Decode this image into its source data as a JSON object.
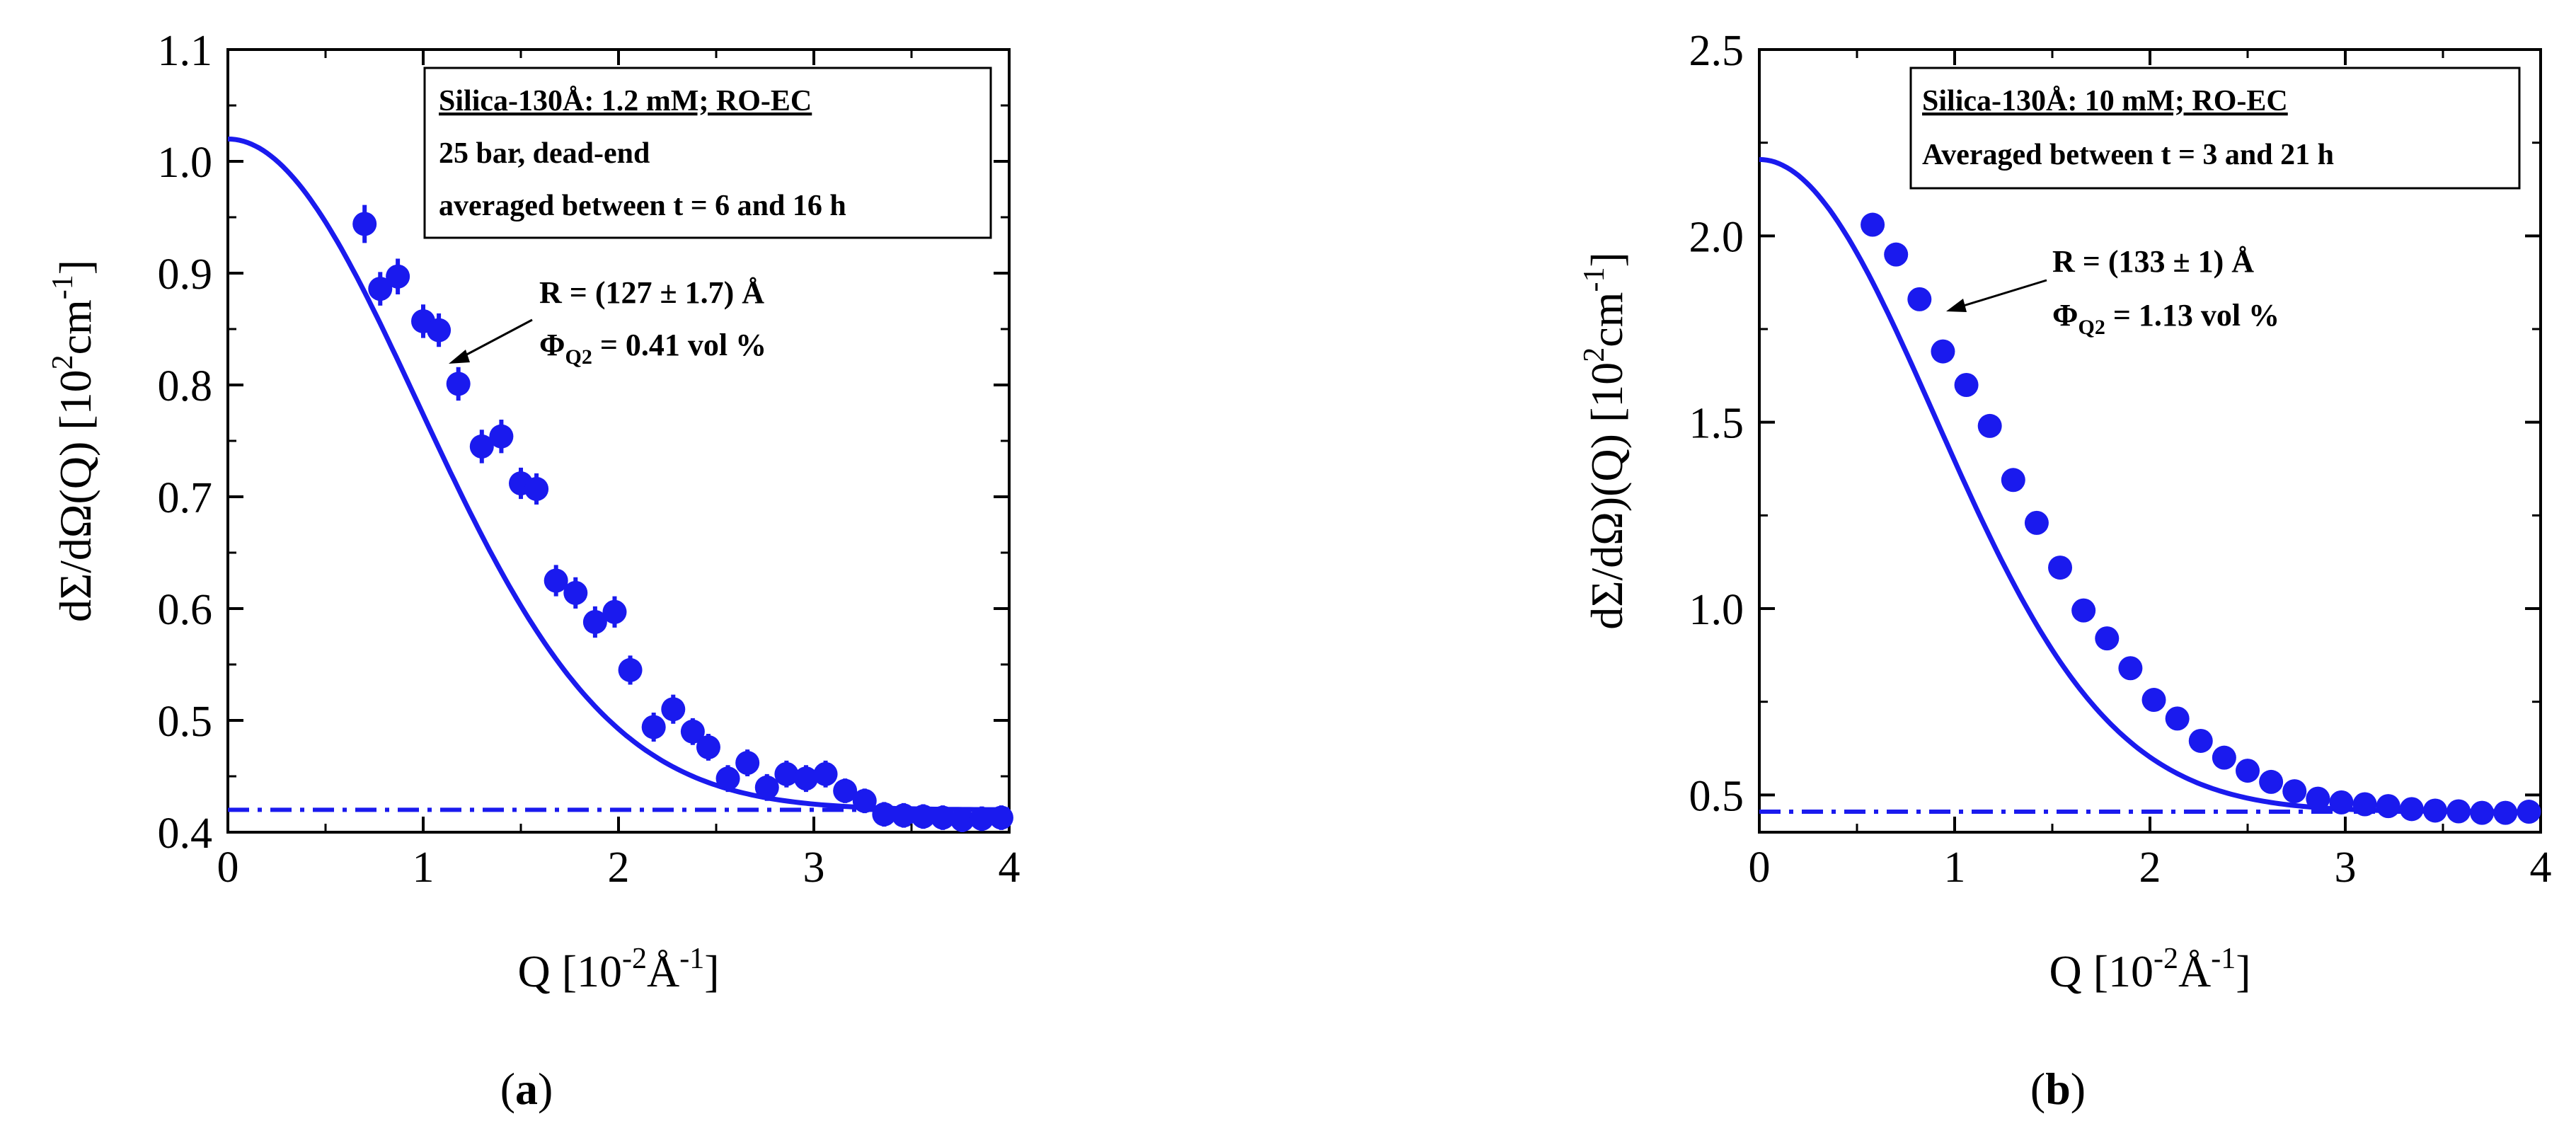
{
  "colors": {
    "series": "#1a1aee",
    "axis": "#000000"
  },
  "chart_data": [
    {
      "type": "scatter",
      "panel_label": "(a)",
      "panel_label_parts": [
        "(",
        "a",
        ")"
      ],
      "xlabel": "Q [10-2Å-1]",
      "xlabel_parts": [
        "Q [10",
        "-2",
        "Å",
        "-1",
        "]"
      ],
      "ylabel": "dΣ/dΩ(Q) [102cm-1]",
      "ylabel_parts": [
        "dΣ/dΩ(Q) [10",
        "2",
        "cm",
        "-1",
        "]"
      ],
      "xlim": [
        0,
        4
      ],
      "ylim": [
        0.4,
        1.1
      ],
      "xticks": [
        "0",
        "1",
        "2",
        "3",
        "4"
      ],
      "yticks": [
        "0.4",
        "0.5",
        "0.6",
        "0.7",
        "0.8",
        "0.9",
        "1.0",
        "1.1"
      ],
      "legend_box": {
        "title": "Silica-130Å: 1.2 mM; RO-EC",
        "lines": [
          "25 bar, dead-end",
          "averaged between t = 6 and 16 h"
        ]
      },
      "annotation": {
        "line1": "R = (127 ± 1.7) Å",
        "phi_symbol": "Φ",
        "phi_sub": "Q2",
        "phi_value": " = 0.41 vol %"
      },
      "background_level": 0.42,
      "fit": {
        "I0": 1.02,
        "Rg_scale": 1.375,
        "background": 0.42
      },
      "points": [
        [
          0.7,
          0.944,
          0.017
        ],
        [
          0.78,
          0.886,
          0.015
        ],
        [
          0.87,
          0.897,
          0.016
        ],
        [
          1.0,
          0.857,
          0.015
        ],
        [
          1.08,
          0.849,
          0.015
        ],
        [
          1.18,
          0.801,
          0.015
        ],
        [
          1.3,
          0.745,
          0.015
        ],
        [
          1.4,
          0.754,
          0.015
        ],
        [
          1.5,
          0.712,
          0.014
        ],
        [
          1.58,
          0.707,
          0.014
        ],
        [
          1.68,
          0.625,
          0.014
        ],
        [
          1.78,
          0.614,
          0.014
        ],
        [
          1.88,
          0.588,
          0.014
        ],
        [
          1.98,
          0.597,
          0.014
        ],
        [
          2.06,
          0.545,
          0.013
        ],
        [
          2.18,
          0.494,
          0.013
        ],
        [
          2.28,
          0.51,
          0.013
        ],
        [
          2.38,
          0.49,
          0.012
        ],
        [
          2.46,
          0.476,
          0.012
        ],
        [
          2.56,
          0.448,
          0.012
        ],
        [
          2.66,
          0.462,
          0.012
        ],
        [
          2.76,
          0.44,
          0.012
        ],
        [
          2.86,
          0.452,
          0.012
        ],
        [
          2.96,
          0.448,
          0.012
        ],
        [
          3.06,
          0.452,
          0.012
        ],
        [
          3.16,
          0.437,
          0.011
        ],
        [
          3.26,
          0.428,
          0.011
        ],
        [
          3.36,
          0.416,
          0.011
        ],
        [
          3.46,
          0.415,
          0.011
        ],
        [
          3.56,
          0.414,
          0.011
        ],
        [
          3.66,
          0.413,
          0.011
        ],
        [
          3.76,
          0.411,
          0.011
        ],
        [
          3.86,
          0.412,
          0.011
        ],
        [
          3.96,
          0.413,
          0.011
        ]
      ]
    },
    {
      "type": "scatter",
      "panel_label": "(b)",
      "panel_label_parts": [
        "(",
        "b",
        ")"
      ],
      "xlabel": "Q [10-2Å-1]",
      "xlabel_parts": [
        "Q [10",
        "-2",
        "Å",
        "-1",
        "]"
      ],
      "ylabel": "dΣ/dΩ)(Q) [102cm-1]",
      "ylabel_parts": [
        "dΣ/dΩ)(Q) [10",
        "2",
        "cm",
        "-1",
        "]"
      ],
      "xlim": [
        0,
        4
      ],
      "ylim": [
        0.4,
        2.5
      ],
      "xticks": [
        "0",
        "1",
        "2",
        "3",
        "4"
      ],
      "yticks": [
        "0.5",
        "1.0",
        "1.5",
        "2.0",
        "2.5"
      ],
      "legend_box": {
        "title": "Silica-130Å: 10 mM; RO-EC",
        "lines": [
          "Averaged between t = 3 and 21 h"
        ]
      },
      "annotation": {
        "line1": "R = (133 ± 1) Å",
        "phi_symbol": "Φ",
        "phi_sub": "Q2",
        "phi_value": " = 1.13 vol %"
      },
      "background_level": 0.455,
      "fit": {
        "I0": 2.205,
        "Rg_scale": 1.27,
        "background": 0.455
      },
      "points": [
        [
          0.58,
          2.03,
          0.03
        ],
        [
          0.7,
          1.95,
          0.03
        ],
        [
          0.82,
          1.83,
          0.03
        ],
        [
          0.94,
          1.69,
          0.03
        ],
        [
          1.06,
          1.6,
          0.03
        ],
        [
          1.18,
          1.49,
          0.03
        ],
        [
          1.3,
          1.345,
          0.028
        ],
        [
          1.42,
          1.23,
          0.026
        ],
        [
          1.54,
          1.11,
          0.025
        ],
        [
          1.66,
          0.995,
          0.024
        ],
        [
          1.78,
          0.92,
          0.022
        ],
        [
          1.9,
          0.84,
          0.021
        ],
        [
          2.02,
          0.755,
          0.02
        ],
        [
          2.14,
          0.705,
          0.019
        ],
        [
          2.26,
          0.645,
          0.018
        ],
        [
          2.38,
          0.6,
          0.017
        ],
        [
          2.5,
          0.565,
          0.016
        ],
        [
          2.62,
          0.535,
          0.015
        ],
        [
          2.74,
          0.51,
          0.015
        ],
        [
          2.86,
          0.49,
          0.014
        ],
        [
          2.98,
          0.48,
          0.014
        ],
        [
          3.1,
          0.475,
          0.014
        ],
        [
          3.22,
          0.47,
          0.013
        ],
        [
          3.34,
          0.462,
          0.013
        ],
        [
          3.46,
          0.458,
          0.013
        ],
        [
          3.58,
          0.456,
          0.013
        ],
        [
          3.7,
          0.452,
          0.013
        ],
        [
          3.82,
          0.452,
          0.013
        ],
        [
          3.94,
          0.455,
          0.013
        ]
      ]
    }
  ]
}
